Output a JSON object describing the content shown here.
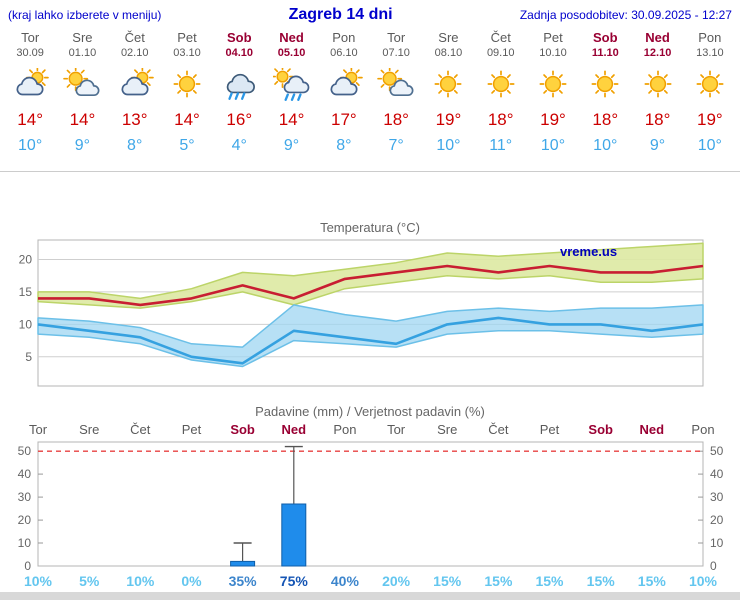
{
  "header": {
    "left_note": "(kraj lahko izberete v meniju)",
    "title": "Zagreb 14 dni",
    "updated": "Zadnja posodobitev: 30.09.2025 - 12:27"
  },
  "colors": {
    "header_blue": "#0000cc",
    "weekday": "#5a5a5a",
    "weekend": "#990033",
    "tmax_red": "#cc0000",
    "tmin_blue": "#3fa7e8",
    "bar_blue": "#1f8ceb",
    "dashed_red": "#e84040",
    "prob_low": "#63c6ef",
    "prob_mid": "#3c85cc",
    "prob_high": "#1555b4"
  },
  "days": [
    {
      "name": "Tor",
      "date": "30.09",
      "weekend": false,
      "icon": "cloud-sun",
      "tmax": "14°",
      "tmin": "10°"
    },
    {
      "name": "Sre",
      "date": "01.10",
      "weekend": false,
      "icon": "sun-cloud",
      "tmax": "14°",
      "tmin": "9°"
    },
    {
      "name": "Čet",
      "date": "02.10",
      "weekend": false,
      "icon": "cloud-sun",
      "tmax": "13°",
      "tmin": "8°"
    },
    {
      "name": "Pet",
      "date": "03.10",
      "weekend": false,
      "icon": "sunny",
      "tmax": "14°",
      "tmin": "5°"
    },
    {
      "name": "Sob",
      "date": "04.10",
      "weekend": true,
      "icon": "rain",
      "tmax": "16°",
      "tmin": "4°"
    },
    {
      "name": "Ned",
      "date": "05.10",
      "weekend": true,
      "icon": "sun-showers",
      "tmax": "14°",
      "tmin": "9°"
    },
    {
      "name": "Pon",
      "date": "06.10",
      "weekend": false,
      "icon": "cloud-sun",
      "tmax": "17°",
      "tmin": "8°"
    },
    {
      "name": "Tor",
      "date": "07.10",
      "weekend": false,
      "icon": "sun-cloud",
      "tmax": "18°",
      "tmin": "7°"
    },
    {
      "name": "Sre",
      "date": "08.10",
      "weekend": false,
      "icon": "sunny",
      "tmax": "19°",
      "tmin": "10°"
    },
    {
      "name": "Čet",
      "date": "09.10",
      "weekend": false,
      "icon": "sunny",
      "tmax": "18°",
      "tmin": "11°"
    },
    {
      "name": "Pet",
      "date": "10.10",
      "weekend": false,
      "icon": "sunny",
      "tmax": "19°",
      "tmin": "10°"
    },
    {
      "name": "Sob",
      "date": "11.10",
      "weekend": true,
      "icon": "sunny",
      "tmax": "18°",
      "tmin": "10°"
    },
    {
      "name": "Ned",
      "date": "12.10",
      "weekend": true,
      "icon": "sunny",
      "tmax": "18°",
      "tmin": "9°"
    },
    {
      "name": "Pon",
      "date": "13.10",
      "weekend": false,
      "icon": "sunny",
      "tmax": "19°",
      "tmin": "10°"
    }
  ],
  "chart_data": [
    {
      "type": "line",
      "title": "Temperatura (°C)",
      "watermark": "vreme.us",
      "x_labels": [
        "Tor",
        "Sre",
        "Čet",
        "Pet",
        "Sob",
        "Ned",
        "Pon",
        "Tor",
        "Sre",
        "Čet",
        "Pet",
        "Sob",
        "Ned",
        "Pon"
      ],
      "ylim": [
        0.5,
        23
      ],
      "yticks": [
        5,
        10,
        15,
        20
      ],
      "series": [
        {
          "name": "max-temperature",
          "color": "#c81e32",
          "width": 2.6,
          "values": [
            14,
            14,
            13,
            14,
            16,
            14,
            17,
            18,
            19,
            18,
            19,
            18,
            18,
            19
          ]
        },
        {
          "name": "min-temperature",
          "color": "#35a1e0",
          "width": 2.6,
          "values": [
            10,
            9,
            8,
            5,
            4,
            9,
            8,
            7,
            10,
            11,
            10,
            10,
            9,
            10
          ]
        }
      ],
      "bands": [
        {
          "name": "max-range",
          "fill": "#dde9a2",
          "edge": "#bcd468",
          "opacity": 0.9,
          "upper": [
            15,
            15,
            14,
            15.5,
            18,
            17.5,
            18.5,
            19.5,
            21,
            20.5,
            21,
            21.5,
            22,
            22.5
          ],
          "lower": [
            13.5,
            13,
            12.5,
            13.5,
            15,
            13,
            15.5,
            16.5,
            17.5,
            17,
            17.5,
            16.5,
            16.5,
            17
          ]
        },
        {
          "name": "min-range",
          "fill": "#9fd6f2",
          "edge": "#6cc0e8",
          "opacity": 0.75,
          "upper": [
            11,
            10.5,
            9.5,
            7,
            6.5,
            13,
            11.5,
            10.5,
            12,
            12.5,
            12,
            12.5,
            12.5,
            13
          ],
          "lower": [
            8.5,
            8,
            7,
            4.5,
            3.5,
            7.5,
            7,
            6.5,
            8.5,
            9,
            9,
            8.5,
            8,
            8.5
          ]
        }
      ]
    },
    {
      "type": "bar",
      "title": "Padavine (mm) / Verjetnost padavin (%)",
      "categories": [
        "Tor",
        "Sre",
        "Čet",
        "Pet",
        "Sob",
        "Ned",
        "Pon",
        "Tor",
        "Sre",
        "Čet",
        "Pet",
        "Sob",
        "Ned",
        "Pon"
      ],
      "weekend": [
        false,
        false,
        false,
        false,
        true,
        true,
        false,
        false,
        false,
        false,
        false,
        true,
        true,
        false
      ],
      "values": [
        0,
        0,
        0,
        0,
        2,
        27,
        0,
        0,
        0,
        0,
        0,
        0,
        0,
        0
      ],
      "whisker_max": [
        0,
        0,
        0,
        0,
        10,
        52,
        0,
        0,
        0,
        0,
        0,
        0,
        0,
        0
      ],
      "probability": [
        10,
        5,
        10,
        0,
        35,
        75,
        40,
        20,
        15,
        15,
        15,
        15,
        15,
        10
      ],
      "ylim": [
        0,
        54
      ],
      "yticks": [
        0,
        10,
        20,
        30,
        40,
        50
      ],
      "threshold_line": 50
    }
  ]
}
